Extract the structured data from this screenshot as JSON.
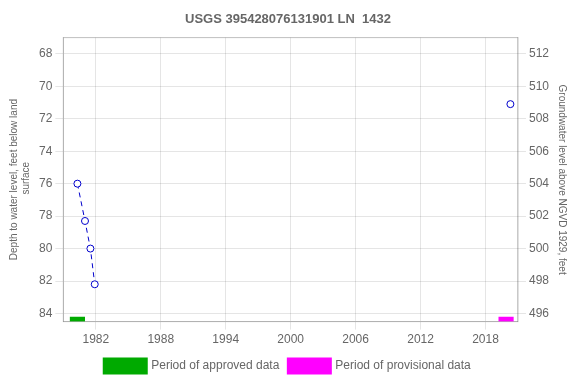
{
  "chart_data": {
    "type": "line",
    "title": "USGS 395428076131901 LN  1432",
    "ylabel": "Depth to water level, feet below land\n surface",
    "y2label": "Groundwater level above NGVD 1929, feet",
    "xlim": [
      1979,
      2021
    ],
    "xticks": [
      1982,
      1988,
      1994,
      2000,
      2006,
      2012,
      2018
    ],
    "ylim": [
      84.5,
      67.0
    ],
    "yticks": [
      68,
      70,
      72,
      74,
      76,
      78,
      80,
      82,
      84
    ],
    "y2lim": [
      495.5,
      513.0
    ],
    "y2ticks": [
      512,
      510,
      508,
      506,
      504,
      502,
      500,
      498,
      496
    ],
    "grid": true,
    "legend": "bottom",
    "series": [
      {
        "type": "line",
        "color": "#0000cc",
        "line_style": "dashed",
        "marker": "circle",
        "x": [
          1980.3,
          1981.0,
          1981.5,
          1981.9
        ],
        "values": [
          76.0,
          78.3,
          80.0,
          82.2
        ]
      },
      {
        "type": "scatter",
        "color": "#0000cc",
        "marker": "circle",
        "x": [
          2020.3
        ],
        "values": [
          71.1
        ]
      },
      {
        "name": "Period of approved data",
        "type": "line",
        "color": "#00aa00",
        "line_style": "solid",
        "x": [
          1979.6,
          1981.0
        ],
        "values": [
          84.35,
          84.35
        ]
      },
      {
        "name": "Period of provisional data",
        "type": "line",
        "color": "#ff00ff",
        "line_style": "solid",
        "x": [
          2019.2,
          2020.6
        ],
        "values": [
          84.35,
          84.35
        ]
      }
    ]
  }
}
